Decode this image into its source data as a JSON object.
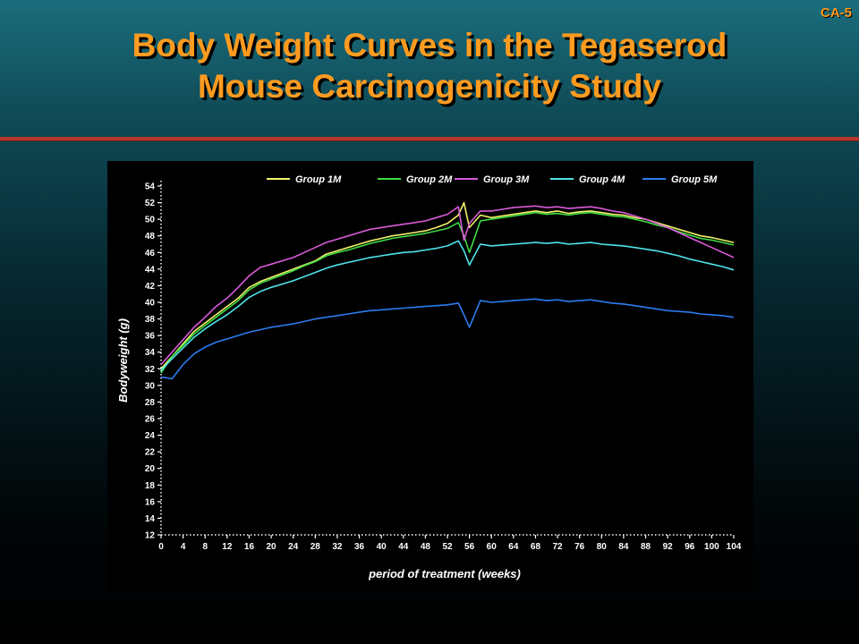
{
  "slide": {
    "id": "CA-5",
    "title_lines": [
      "Body Weight Curves in the Tegaserod",
      "Mouse Carcinogenicity Study"
    ]
  },
  "chart_data": {
    "type": "line",
    "xlabel": "period of treatment (weeks)",
    "ylabel": "Bodyweight (g)",
    "xlim": [
      0,
      104
    ],
    "ylim": [
      12,
      54
    ],
    "xticks": [
      0,
      4,
      8,
      12,
      16,
      20,
      24,
      28,
      32,
      36,
      40,
      44,
      48,
      52,
      56,
      60,
      64,
      68,
      72,
      76,
      80,
      84,
      88,
      92,
      96,
      100,
      104
    ],
    "yticks": [
      12,
      14,
      16,
      18,
      20,
      22,
      24,
      26,
      28,
      30,
      32,
      34,
      36,
      38,
      40,
      42,
      44,
      46,
      48,
      50,
      52,
      54
    ],
    "grid": false,
    "legend_position": "top",
    "x": [
      0,
      2,
      4,
      6,
      8,
      10,
      12,
      14,
      16,
      18,
      20,
      22,
      24,
      26,
      28,
      30,
      32,
      34,
      36,
      38,
      40,
      42,
      44,
      46,
      48,
      50,
      52,
      54,
      55,
      56,
      58,
      60,
      62,
      64,
      66,
      68,
      70,
      72,
      74,
      76,
      78,
      80,
      82,
      84,
      86,
      88,
      90,
      92,
      94,
      96,
      98,
      100,
      102,
      104
    ],
    "series": [
      {
        "name": "Group 1M",
        "color": "#f2f26a",
        "values": [
          32.0,
          33.5,
          35.0,
          36.5,
          37.5,
          38.5,
          39.5,
          40.5,
          41.8,
          42.5,
          43.0,
          43.5,
          44.0,
          44.5,
          45.0,
          45.8,
          46.2,
          46.6,
          47.0,
          47.4,
          47.7,
          48.0,
          48.2,
          48.4,
          48.6,
          49.0,
          49.5,
          50.5,
          52.0,
          49.0,
          50.5,
          50.2,
          50.4,
          50.6,
          50.8,
          51.0,
          50.8,
          51.0,
          50.7,
          50.9,
          51.0,
          50.8,
          50.6,
          50.5,
          50.2,
          50.0,
          49.6,
          49.2,
          48.8,
          48.4,
          48.0,
          47.8,
          47.5,
          47.2
        ]
      },
      {
        "name": "Group 2M",
        "color": "#3ddc45",
        "values": [
          31.5,
          33.5,
          34.8,
          36.2,
          37.2,
          38.2,
          39.2,
          40.2,
          41.5,
          42.3,
          42.8,
          43.3,
          43.8,
          44.4,
          44.9,
          45.6,
          46.0,
          46.3,
          46.7,
          47.1,
          47.4,
          47.7,
          47.9,
          48.1,
          48.3,
          48.6,
          48.9,
          49.6,
          48.0,
          46.0,
          49.8,
          50.0,
          50.2,
          50.4,
          50.6,
          50.8,
          50.6,
          50.7,
          50.5,
          50.7,
          50.8,
          50.6,
          50.4,
          50.3,
          50.0,
          49.7,
          49.3,
          49.0,
          48.5,
          48.1,
          47.7,
          47.5,
          47.2,
          46.9
        ]
      },
      {
        "name": "Group 3M",
        "color": "#d95bd8",
        "values": [
          32.5,
          34.0,
          35.5,
          37.0,
          38.2,
          39.5,
          40.5,
          41.8,
          43.2,
          44.2,
          44.6,
          45.0,
          45.4,
          46.0,
          46.6,
          47.2,
          47.6,
          48.0,
          48.4,
          48.8,
          49.0,
          49.2,
          49.4,
          49.6,
          49.8,
          50.2,
          50.6,
          51.5,
          47.5,
          49.5,
          51.0,
          51.0,
          51.2,
          51.4,
          51.5,
          51.6,
          51.4,
          51.5,
          51.3,
          51.4,
          51.5,
          51.3,
          51.0,
          50.8,
          50.4,
          50.0,
          49.5,
          49.0,
          48.4,
          47.8,
          47.2,
          46.6,
          46.0,
          45.4
        ]
      },
      {
        "name": "Group 4M",
        "color": "#4fe4ea",
        "values": [
          31.8,
          33.2,
          34.5,
          35.8,
          36.8,
          37.7,
          38.5,
          39.5,
          40.6,
          41.3,
          41.8,
          42.2,
          42.6,
          43.1,
          43.6,
          44.1,
          44.5,
          44.8,
          45.1,
          45.4,
          45.6,
          45.8,
          46.0,
          46.1,
          46.3,
          46.5,
          46.8,
          47.4,
          46.2,
          44.5,
          47.0,
          46.8,
          46.9,
          47.0,
          47.1,
          47.2,
          47.1,
          47.2,
          47.0,
          47.1,
          47.2,
          47.0,
          46.9,
          46.8,
          46.6,
          46.4,
          46.2,
          45.9,
          45.6,
          45.2,
          44.9,
          44.6,
          44.3,
          43.9
        ]
      },
      {
        "name": "Group 5M",
        "color": "#2d7cf0",
        "values": [
          31.0,
          30.8,
          32.5,
          33.8,
          34.6,
          35.2,
          35.6,
          36.0,
          36.4,
          36.7,
          37.0,
          37.2,
          37.4,
          37.7,
          38.0,
          38.2,
          38.4,
          38.6,
          38.8,
          39.0,
          39.1,
          39.2,
          39.3,
          39.4,
          39.5,
          39.6,
          39.7,
          39.9,
          38.5,
          37.0,
          40.2,
          40.0,
          40.1,
          40.2,
          40.3,
          40.4,
          40.2,
          40.3,
          40.1,
          40.2,
          40.3,
          40.1,
          39.9,
          39.8,
          39.6,
          39.4,
          39.2,
          39.0,
          38.9,
          38.8,
          38.6,
          38.5,
          38.4,
          38.2
        ]
      }
    ]
  }
}
